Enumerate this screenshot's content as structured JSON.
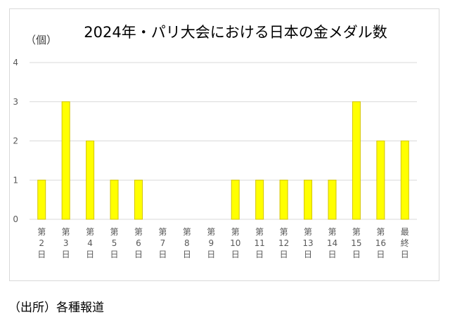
{
  "chart_data": {
    "type": "bar",
    "title": "2024年・パリ大会における日本の金メダル数",
    "ylabel": "（個）",
    "categories": [
      "第2日",
      "第3日",
      "第4日",
      "第5日",
      "第6日",
      "第7日",
      "第8日",
      "第9日",
      "第10日",
      "第11日",
      "第12日",
      "第13日",
      "第14日",
      "第15日",
      "第16日",
      "最終日"
    ],
    "values": [
      1,
      3,
      2,
      1,
      1,
      0,
      0,
      0,
      1,
      1,
      1,
      1,
      1,
      3,
      2,
      2
    ],
    "ylim": [
      0,
      4
    ],
    "yticks": [
      "0",
      "1",
      "2",
      "3",
      "4"
    ],
    "grid": true,
    "bar_color": "#FFFF00",
    "bar_edge_color": "#D4C400",
    "grid_color": "#D9D9D9"
  },
  "source_note": "（出所）各種報道"
}
